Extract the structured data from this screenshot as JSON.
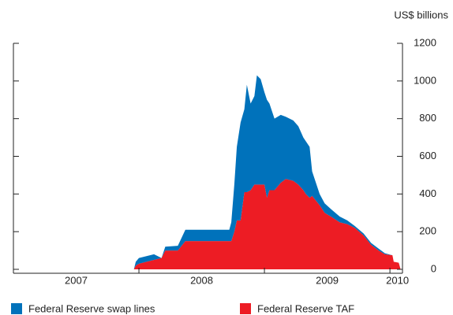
{
  "chart_data": {
    "type": "stacked_area",
    "y_label": "US$ billions",
    "stacked": true,
    "x": [
      2007.96,
      2007.975,
      2008.0,
      2008.06,
      2008.12,
      2008.18,
      2008.21,
      2008.31,
      2008.37,
      2008.53,
      2008.62,
      2008.69,
      2008.72,
      2008.736,
      2008.76,
      2008.78,
      2008.81,
      2008.84,
      2008.86,
      2008.89,
      2008.92,
      2008.94,
      2008.97,
      2009.0,
      2009.02,
      2009.04,
      2009.08,
      2009.13,
      2009.17,
      2009.23,
      2009.27,
      2009.31,
      2009.33,
      2009.36,
      2009.38,
      2009.44,
      2009.48,
      2009.53,
      2009.6,
      2009.66,
      2009.72,
      2009.79,
      2009.85,
      2009.91,
      2009.96,
      2010.02,
      2010.03,
      2010.07,
      2010.085
    ],
    "series": [
      {
        "name": "Federal Reserve swap lines",
        "color": "#0072bb",
        "values": [
          0,
          20,
          30,
          30,
          30,
          0,
          20,
          25,
          60,
          60,
          60,
          60,
          60,
          100,
          250,
          390,
          520,
          440,
          570,
          460,
          470,
          580,
          560,
          490,
          520,
          460,
          380,
          360,
          330,
          320,
          310,
          280,
          280,
          270,
          130,
          60,
          50,
          40,
          30,
          20,
          10,
          10,
          10,
          10,
          5,
          0,
          0,
          0,
          0
        ]
      },
      {
        "name": "Federal Reserve TAF",
        "color": "#ed1c24",
        "values": [
          0,
          20,
          30,
          40,
          50,
          60,
          100,
          100,
          150,
          150,
          150,
          150,
          150,
          150,
          200,
          260,
          260,
          410,
          410,
          420,
          450,
          450,
          450,
          450,
          380,
          420,
          420,
          460,
          480,
          470,
          450,
          420,
          400,
          380,
          390,
          340,
          300,
          280,
          250,
          240,
          220,
          180,
          130,
          100,
          80,
          75,
          40,
          35,
          0
        ]
      }
    ],
    "xlim": [
      2007,
      2010.1
    ],
    "xtick_marks": [
      2007,
      2008,
      2009,
      2010
    ],
    "xticks": [
      {
        "value": 2007.5,
        "label": "2007"
      },
      {
        "value": 2008.5,
        "label": "2008"
      },
      {
        "value": 2009.5,
        "label": "2009"
      },
      {
        "value": 2010.06,
        "label": "2010"
      }
    ],
    "ylim": [
      0,
      1200
    ],
    "yticks": [
      0,
      200,
      400,
      600,
      800,
      1000,
      1200
    ],
    "legend": "bottom"
  }
}
